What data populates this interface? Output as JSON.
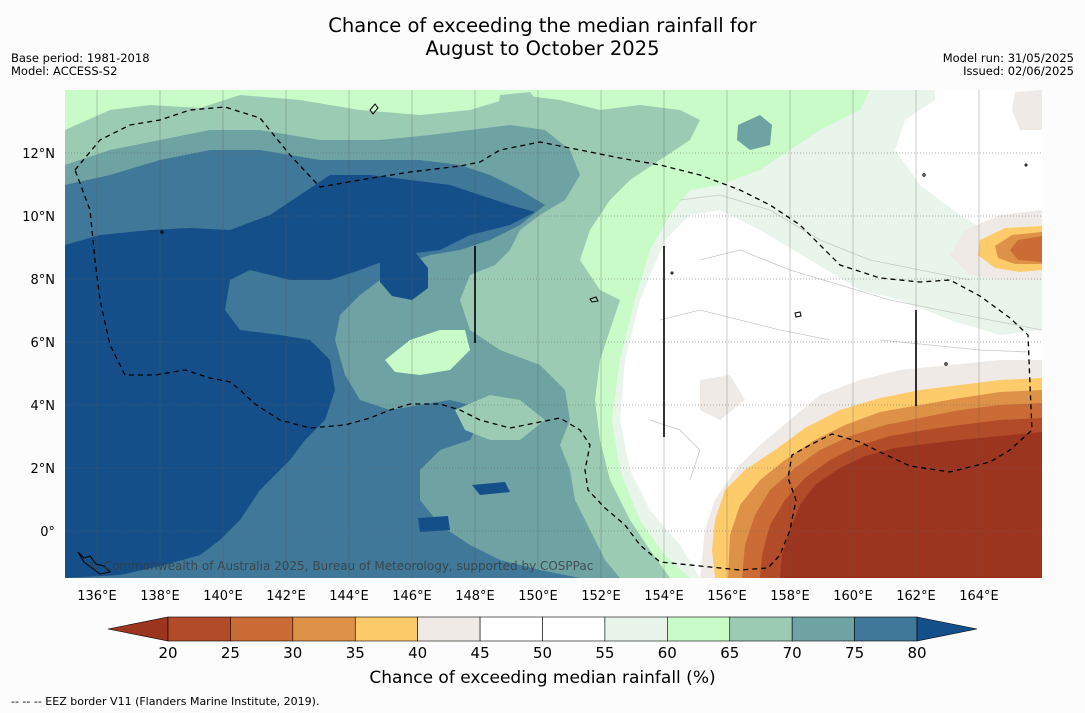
{
  "title_line1": "Chance of exceeding the median rainfall for",
  "title_line2": "August to October 2025",
  "meta_left": {
    "base_period": "Base period: 1981-2018",
    "model": "Model: ACCESS-S2"
  },
  "meta_right": {
    "model_run": "Model run: 31/05/2025",
    "issued": "Issued: 02/06/2025"
  },
  "map": {
    "lat_labels": [
      "12°N",
      "10°N",
      "8°N",
      "6°N",
      "4°N",
      "2°N",
      "0°"
    ],
    "lon_labels": [
      "136°E",
      "138°E",
      "140°E",
      "142°E",
      "144°E",
      "146°E",
      "148°E",
      "150°E",
      "152°E",
      "154°E",
      "156°E",
      "158°E",
      "160°E",
      "162°E",
      "164°E"
    ],
    "copyright": "© Commonwealth of Australia 2025, Bureau of Meteorology, supported by COSPPac"
  },
  "colorbar": {
    "ticks": [
      "20",
      "25",
      "30",
      "35",
      "40",
      "45",
      "50",
      "55",
      "60",
      "65",
      "70",
      "75",
      "80"
    ],
    "colors": [
      "#9c3520",
      "#b24b28",
      "#cb6b35",
      "#de9248",
      "#fdcb6a",
      "#efeae5",
      "#ffffff",
      "#ffffff",
      "#e9f5ea",
      "#c9fbc9",
      "#9ccbb4",
      "#6ea2a3",
      "#3f7898",
      "#154f89"
    ],
    "title": "Chance of exceeding median rainfall (%)"
  },
  "footer": "--  --  -- EEZ border V11 (Flanders Marine Institute, 2019)."
}
